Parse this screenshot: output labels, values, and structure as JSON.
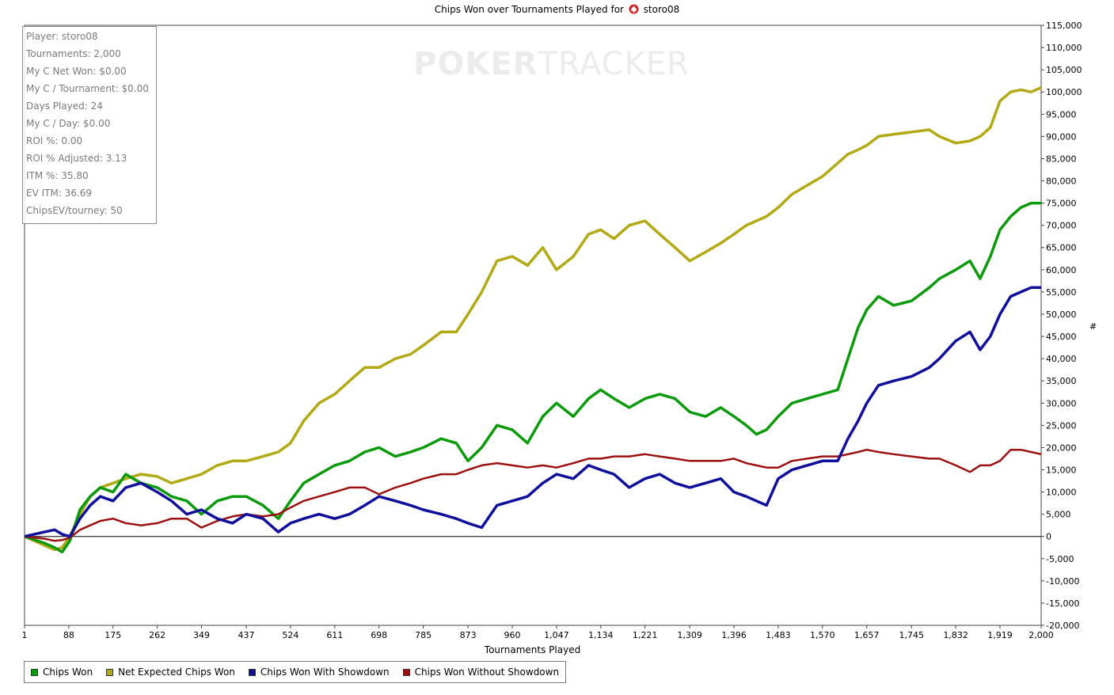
{
  "title": {
    "prefix": "Chips Won over Tournaments Played for",
    "player": "storo08",
    "icon": "pokerstars-spade-icon"
  },
  "watermark": {
    "strong": "POKER",
    "light": "TRACKER"
  },
  "stats": [
    "Player: storo08",
    "Tournaments: 2,000",
    "My C Net Won: $0.00",
    "My C / Tournament: $0.00",
    "Days Played: 24",
    "My C / Day: $0.00",
    "ROI %: 0.00",
    "ROI % Adjusted: 3.13",
    "ITM %: 35.80",
    "EV ITM: 36.69",
    "ChipsEV/tourney: 50"
  ],
  "chart_data": {
    "type": "line",
    "title": "Chips Won over Tournaments Played for storo08",
    "xlabel": "Tournaments Played",
    "ylabel": "#",
    "xlim": [
      1,
      2000
    ],
    "ylim": [
      -20000,
      115000
    ],
    "x_ticks": [
      1,
      88,
      175,
      262,
      349,
      437,
      524,
      611,
      698,
      785,
      873,
      960,
      1047,
      1134,
      1221,
      1309,
      1396,
      1483,
      1570,
      1657,
      1745,
      1832,
      1919,
      2000
    ],
    "x_tick_labels": [
      "1",
      "88",
      "175",
      "262",
      "349",
      "437",
      "524",
      "611",
      "698",
      "785",
      "873",
      "960",
      "1,047",
      "1,134",
      "1,221",
      "1,309",
      "1,396",
      "1,483",
      "1,570",
      "1,657",
      "1,745",
      "1,832",
      "1,919",
      "2,000"
    ],
    "y_ticks": [
      -20000,
      -15000,
      -10000,
      -5000,
      0,
      5000,
      10000,
      15000,
      20000,
      25000,
      30000,
      35000,
      40000,
      45000,
      50000,
      55000,
      60000,
      65000,
      70000,
      75000,
      80000,
      85000,
      90000,
      95000,
      100000,
      105000,
      110000,
      115000
    ],
    "y_tick_labels": [
      "-20,000",
      "-15,000",
      "-10,000",
      "-5,000",
      "0",
      "5,000",
      "10,000",
      "15,000",
      "20,000",
      "25,000",
      "30,000",
      "35,000",
      "40,000",
      "45,000",
      "50,000",
      "55,000",
      "60,000",
      "65,000",
      "70,000",
      "75,000",
      "80,000",
      "85,000",
      "90,000",
      "95,000",
      "100,000",
      "105,000",
      "110,000",
      "115,000"
    ],
    "grid": false,
    "legend_position": "bottom-left",
    "series": [
      {
        "name": "Chips Won",
        "color": "#0b9a0b",
        "x": [
          1,
          40,
          60,
          75,
          90,
          110,
          130,
          150,
          175,
          200,
          230,
          262,
          290,
          320,
          349,
          380,
          410,
          437,
          470,
          500,
          524,
          550,
          580,
          611,
          640,
          670,
          698,
          730,
          760,
          785,
          820,
          850,
          873,
          900,
          930,
          960,
          990,
          1020,
          1047,
          1080,
          1110,
          1134,
          1160,
          1190,
          1221,
          1250,
          1280,
          1309,
          1340,
          1370,
          1396,
          1420,
          1440,
          1460,
          1483,
          1510,
          1540,
          1570,
          1600,
          1620,
          1640,
          1657,
          1680,
          1710,
          1745,
          1780,
          1800,
          1832,
          1860,
          1880,
          1900,
          1919,
          1940,
          1960,
          1980,
          2000
        ],
        "y": [
          0,
          -1500,
          -2500,
          -3500,
          -1000,
          6000,
          9000,
          11000,
          10000,
          14000,
          12000,
          11000,
          9000,
          8000,
          5000,
          8000,
          9000,
          9000,
          7000,
          4000,
          8000,
          12000,
          14000,
          16000,
          17000,
          19000,
          20000,
          18000,
          19000,
          20000,
          22000,
          21000,
          17000,
          20000,
          25000,
          24000,
          21000,
          27000,
          30000,
          27000,
          31000,
          33000,
          31000,
          29000,
          31000,
          32000,
          31000,
          28000,
          27000,
          29000,
          27000,
          25000,
          23000,
          24000,
          27000,
          30000,
          31000,
          32000,
          33000,
          40000,
          47000,
          51000,
          54000,
          52000,
          53000,
          56000,
          58000,
          60000,
          62000,
          58000,
          63000,
          69000,
          72000,
          74000,
          75000,
          75000
        ]
      },
      {
        "name": "Net Expected Chips Won",
        "color": "#b2aa14",
        "x": [
          1,
          40,
          60,
          75,
          90,
          110,
          130,
          150,
          175,
          200,
          230,
          262,
          290,
          320,
          349,
          380,
          410,
          437,
          470,
          500,
          524,
          550,
          580,
          611,
          640,
          670,
          698,
          730,
          760,
          785,
          820,
          850,
          873,
          900,
          930,
          960,
          990,
          1020,
          1047,
          1080,
          1110,
          1134,
          1160,
          1190,
          1221,
          1250,
          1280,
          1309,
          1340,
          1370,
          1396,
          1420,
          1440,
          1460,
          1483,
          1510,
          1540,
          1570,
          1600,
          1620,
          1640,
          1657,
          1680,
          1710,
          1745,
          1780,
          1800,
          1832,
          1860,
          1880,
          1900,
          1919,
          1940,
          1960,
          1980,
          2000
        ],
        "y": [
          0,
          -2000,
          -3000,
          -2500,
          0,
          5000,
          9000,
          11000,
          12000,
          13000,
          14000,
          13500,
          12000,
          13000,
          14000,
          16000,
          17000,
          17000,
          18000,
          19000,
          21000,
          26000,
          30000,
          32000,
          35000,
          38000,
          38000,
          40000,
          41000,
          43000,
          46000,
          46000,
          50000,
          55000,
          62000,
          63000,
          61000,
          65000,
          60000,
          63000,
          68000,
          69000,
          67000,
          70000,
          71000,
          68000,
          65000,
          62000,
          64000,
          66000,
          68000,
          70000,
          71000,
          72000,
          74000,
          77000,
          79000,
          81000,
          84000,
          86000,
          87000,
          88000,
          90000,
          90500,
          91000,
          91500,
          90000,
          88500,
          89000,
          90000,
          92000,
          98000,
          100000,
          100500,
          100000,
          101000
        ]
      },
      {
        "name": "Chips Won With Showdown",
        "color": "#10109c",
        "x": [
          1,
          40,
          60,
          75,
          90,
          110,
          130,
          150,
          175,
          200,
          230,
          262,
          290,
          320,
          349,
          380,
          410,
          437,
          470,
          500,
          524,
          550,
          580,
          611,
          640,
          670,
          698,
          730,
          760,
          785,
          820,
          850,
          873,
          900,
          930,
          960,
          990,
          1020,
          1047,
          1080,
          1110,
          1134,
          1160,
          1190,
          1221,
          1250,
          1280,
          1309,
          1340,
          1370,
          1396,
          1420,
          1440,
          1460,
          1483,
          1510,
          1540,
          1570,
          1600,
          1620,
          1640,
          1657,
          1680,
          1710,
          1745,
          1780,
          1800,
          1832,
          1860,
          1880,
          1900,
          1919,
          1940,
          1960,
          1980,
          2000
        ],
        "y": [
          0,
          1000,
          1500,
          500,
          0,
          4000,
          7000,
          9000,
          8000,
          11000,
          12000,
          10000,
          8000,
          5000,
          6000,
          4000,
          3000,
          5000,
          4000,
          1000,
          3000,
          4000,
          5000,
          4000,
          5000,
          7000,
          9000,
          8000,
          7000,
          6000,
          5000,
          4000,
          3000,
          2000,
          7000,
          8000,
          9000,
          12000,
          14000,
          13000,
          16000,
          15000,
          14000,
          11000,
          13000,
          14000,
          12000,
          11000,
          12000,
          13000,
          10000,
          9000,
          8000,
          7000,
          13000,
          15000,
          16000,
          17000,
          17000,
          22000,
          26000,
          30000,
          34000,
          35000,
          36000,
          38000,
          40000,
          44000,
          46000,
          42000,
          45000,
          50000,
          54000,
          55000,
          56000,
          56000
        ]
      },
      {
        "name": "Chips Won Without Showdown",
        "color": "#9c1010",
        "x": [
          1,
          40,
          60,
          75,
          90,
          110,
          130,
          150,
          175,
          200,
          230,
          262,
          290,
          320,
          349,
          380,
          410,
          437,
          470,
          500,
          524,
          550,
          580,
          611,
          640,
          670,
          698,
          730,
          760,
          785,
          820,
          850,
          873,
          900,
          930,
          960,
          990,
          1020,
          1047,
          1080,
          1110,
          1134,
          1160,
          1190,
          1221,
          1250,
          1280,
          1309,
          1340,
          1370,
          1396,
          1420,
          1440,
          1460,
          1483,
          1510,
          1540,
          1570,
          1600,
          1620,
          1640,
          1657,
          1680,
          1710,
          1745,
          1780,
          1800,
          1832,
          1860,
          1880,
          1900,
          1919,
          1940,
          1960,
          1980,
          2000
        ],
        "y": [
          0,
          -500,
          -1000,
          -800,
          -300,
          1500,
          2500,
          3500,
          4000,
          3000,
          2500,
          3000,
          4000,
          4000,
          2000,
          3500,
          4500,
          5000,
          4500,
          5000,
          6500,
          8000,
          9000,
          10000,
          11000,
          11000,
          9500,
          11000,
          12000,
          13000,
          14000,
          14000,
          15000,
          16000,
          16500,
          16000,
          15500,
          16000,
          15500,
          16500,
          17500,
          17500,
          18000,
          18000,
          18500,
          18000,
          17500,
          17000,
          17000,
          17000,
          17500,
          16500,
          16000,
          15500,
          15500,
          17000,
          17500,
          18000,
          18000,
          18500,
          19000,
          19500,
          19000,
          18500,
          18000,
          17500,
          17500,
          16000,
          14500,
          16000,
          16000,
          17000,
          19500,
          19500,
          19000,
          18500
        ]
      }
    ]
  }
}
